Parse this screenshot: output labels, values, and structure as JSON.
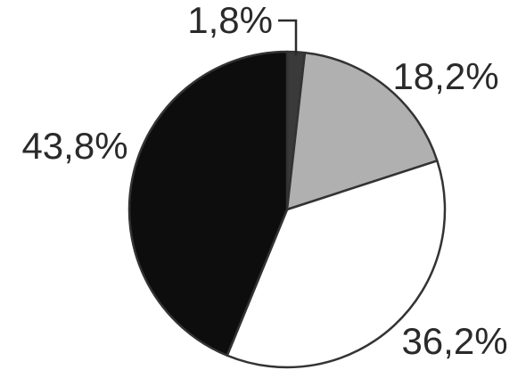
{
  "chart_data": {
    "type": "pie",
    "start_angle_deg": 0,
    "direction": "clockwise",
    "slices": [
      {
        "label": "1,8%",
        "value": 1.8,
        "color": "#3a3a3a"
      },
      {
        "label": "18,2%",
        "value": 18.2,
        "color": "#b0b0b0"
      },
      {
        "label": "36,2%",
        "value": 36.2,
        "color": "#ffffff"
      },
      {
        "label": "43,8%",
        "value": 43.8,
        "color": "#0d0d0d"
      }
    ],
    "outline_color": "#333333"
  }
}
